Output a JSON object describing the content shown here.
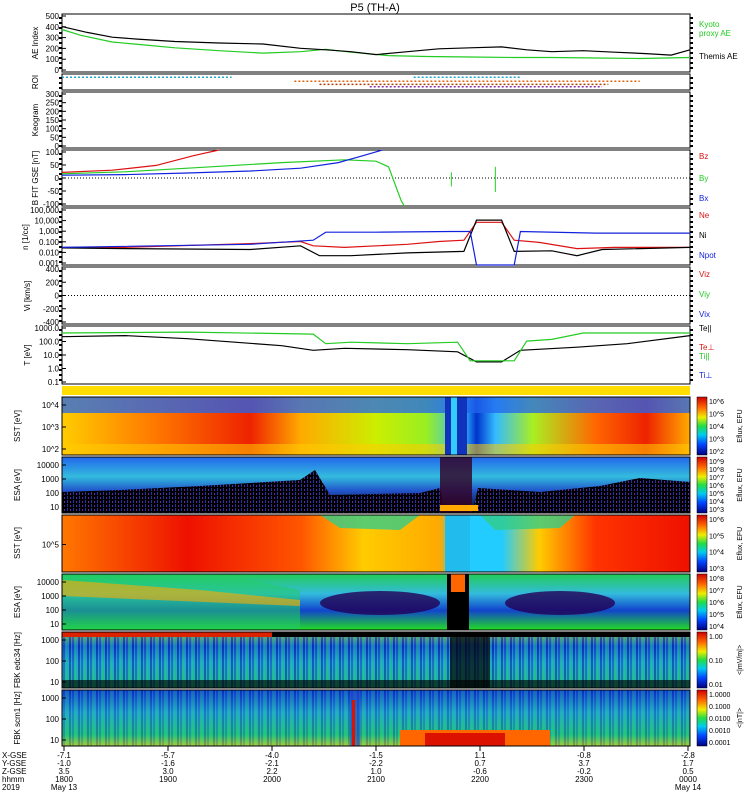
{
  "title": "P5 (TH-A)",
  "colors": {
    "green": "#22cc22",
    "red": "#dd1111",
    "blue": "#1122dd",
    "black": "#000000",
    "cyan": "#22aacc",
    "orange": "#dd6611",
    "brown": "#aa4400",
    "purple": "#8833aa"
  },
  "chart_data": [
    {
      "type": "line",
      "panel": "ae",
      "ylabel": "AE Index",
      "ylim": [
        -100,
        500
      ],
      "yticks": [
        "500",
        "400",
        "300",
        "200",
        "100",
        "0"
      ],
      "legend": [
        "Kyoto",
        "proxy AE",
        "Themis AE"
      ],
      "series": [
        {
          "name": "Kyoto proxy AE",
          "color": "green",
          "values": [
            [
              0,
              340
            ],
            [
              0.03,
              280
            ],
            [
              0.08,
              210
            ],
            [
              0.13,
              180
            ],
            [
              0.18,
              150
            ],
            [
              0.25,
              120
            ],
            [
              0.32,
              95
            ],
            [
              0.38,
              110
            ],
            [
              0.42,
              135
            ],
            [
              0.46,
              105
            ],
            [
              0.52,
              70
            ],
            [
              0.58,
              60
            ],
            [
              0.65,
              55
            ],
            [
              0.72,
              50
            ],
            [
              0.78,
              50
            ],
            [
              0.85,
              45
            ],
            [
              0.92,
              40
            ],
            [
              1,
              50
            ]
          ]
        },
        {
          "name": "Themis AE",
          "color": "black",
          "values": [
            [
              0,
              370
            ],
            [
              0.04,
              310
            ],
            [
              0.08,
              260
            ],
            [
              0.12,
              240
            ],
            [
              0.18,
              215
            ],
            [
              0.25,
              200
            ],
            [
              0.32,
              190
            ],
            [
              0.38,
              145
            ],
            [
              0.42,
              130
            ],
            [
              0.46,
              110
            ],
            [
              0.5,
              80
            ],
            [
              0.55,
              110
            ],
            [
              0.6,
              140
            ],
            [
              0.65,
              150
            ],
            [
              0.7,
              160
            ],
            [
              0.74,
              130
            ],
            [
              0.78,
              110
            ],
            [
              0.83,
              120
            ],
            [
              0.88,
              105
            ],
            [
              0.93,
              90
            ],
            [
              0.97,
              75
            ],
            [
              1,
              130
            ]
          ]
        }
      ]
    },
    {
      "type": "scatter",
      "panel": "roi",
      "ylabel": "ROI",
      "segments": [
        {
          "color": "cyan",
          "y": 0.2,
          "x": [
            0.0,
            0.27
          ]
        },
        {
          "color": "cyan",
          "y": 0.2,
          "x": [
            0.56,
            0.73
          ]
        },
        {
          "color": "orange",
          "y": 0.45,
          "x": [
            0.37,
            0.92
          ]
        },
        {
          "color": "brown",
          "y": 0.65,
          "x": [
            0.41,
            0.87
          ]
        },
        {
          "color": "purple",
          "y": 0.8,
          "x": [
            0.49,
            0.86
          ]
        }
      ]
    },
    {
      "type": "line",
      "panel": "kp",
      "ylabel": "Keogram",
      "ylim": [
        0,
        300
      ],
      "yticks": [
        "300",
        "250",
        "200",
        "150",
        "100",
        "50",
        "0"
      ]
    },
    {
      "type": "line",
      "panel": "bfield",
      "ylabel": "B FIT GSE [nT]",
      "ylim": [
        -100,
        100
      ],
      "yticks": [
        "100",
        "50",
        "0",
        "-50",
        "-100"
      ],
      "legend": [
        "Bz",
        "By",
        "Bx"
      ],
      "series": [
        {
          "name": "Bz",
          "color": "red",
          "values": [
            [
              0,
              20
            ],
            [
              0.08,
              28
            ],
            [
              0.15,
              45
            ],
            [
              0.21,
              80
            ],
            [
              0.25,
              100
            ]
          ]
        },
        {
          "name": "By",
          "color": "green",
          "values": [
            [
              0,
              15
            ],
            [
              0.1,
              22
            ],
            [
              0.2,
              35
            ],
            [
              0.35,
              55
            ],
            [
              0.45,
              65
            ],
            [
              0.5,
              60
            ],
            [
              0.52,
              40
            ],
            [
              0.53,
              -20
            ],
            [
              0.54,
              -80
            ],
            [
              0.545,
              -100
            ]
          ]
        },
        {
          "name": "Bx",
          "color": "blue",
          "values": [
            [
              0,
              10
            ],
            [
              0.1,
              12
            ],
            [
              0.2,
              18
            ],
            [
              0.3,
              25
            ],
            [
              0.38,
              35
            ],
            [
              0.44,
              55
            ],
            [
              0.48,
              80
            ],
            [
              0.51,
              100
            ]
          ]
        }
      ]
    },
    {
      "type": "line",
      "panel": "density",
      "ylabel": "n [1/cc]",
      "ylim_log": [
        -3,
        5
      ],
      "yticks": [
        "100,000",
        "10,000",
        "1,000",
        "0.100",
        "0.010",
        "0.001"
      ],
      "legend": [
        "Ne",
        "Ni",
        "Npot"
      ],
      "series": [
        {
          "name": "Ne",
          "color": "red",
          "values": [
            [
              0,
              0.3
            ],
            [
              0.1,
              0.3
            ],
            [
              0.3,
              1.0
            ],
            [
              0.38,
              2
            ],
            [
              0.4,
              0.5
            ],
            [
              0.45,
              0.3
            ],
            [
              0.55,
              0.8
            ],
            [
              0.6,
              2
            ],
            [
              0.64,
              3
            ],
            [
              0.66,
              1000
            ],
            [
              0.7,
              1000
            ],
            [
              0.72,
              3
            ],
            [
              0.76,
              1.5
            ],
            [
              0.82,
              0.2
            ],
            [
              0.88,
              0.3
            ],
            [
              1,
              0.3
            ]
          ]
        },
        {
          "name": "Ni",
          "color": "black",
          "values": [
            [
              0,
              0.25
            ],
            [
              0.1,
              0.2
            ],
            [
              0.3,
              0.15
            ],
            [
              0.38,
              0.5
            ],
            [
              0.41,
              0.02
            ],
            [
              0.46,
              0.02
            ],
            [
              0.55,
              0.05
            ],
            [
              0.64,
              0.08
            ],
            [
              0.66,
              2000
            ],
            [
              0.7,
              2000
            ],
            [
              0.72,
              0.08
            ],
            [
              0.78,
              0.1
            ],
            [
              0.82,
              0.02
            ],
            [
              0.86,
              0.15
            ],
            [
              1,
              0.3
            ]
          ]
        },
        {
          "name": "Npot",
          "color": "blue",
          "values": [
            [
              0,
              0.3
            ],
            [
              0.3,
              0.8
            ],
            [
              0.4,
              3
            ],
            [
              0.42,
              40
            ],
            [
              0.5,
              40
            ],
            [
              0.62,
              50
            ],
            [
              0.65,
              50
            ],
            [
              0.66,
              0.001
            ],
            [
              0.72,
              0.001
            ],
            [
              0.73,
              50
            ],
            [
              0.85,
              30
            ],
            [
              1,
              30
            ]
          ]
        }
      ]
    },
    {
      "type": "line",
      "panel": "velocity",
      "ylabel": "Vi [km/s]",
      "ylim": [
        -500,
        500
      ],
      "yticks": [
        "400",
        "200",
        "0",
        "-200",
        "-400"
      ],
      "legend": [
        "Vix",
        "Viy",
        "Viz"
      ]
    },
    {
      "type": "line",
      "panel": "temperature",
      "ylabel": "T [eV]",
      "ylim_log": [
        -1,
        4
      ],
      "yticks": [
        "1000.0",
        "100.0",
        "10.0",
        "1.0",
        "0.1"
      ],
      "legend": [
        "Te||",
        "Te⊥",
        "Ti||",
        "Ti⊥"
      ],
      "series": [
        {
          "name": "Te||",
          "color": "black",
          "values": [
            [
              0,
              1200
            ],
            [
              0.1,
              1500
            ],
            [
              0.2,
              800
            ],
            [
              0.35,
              200
            ],
            [
              0.4,
              80
            ],
            [
              0.45,
              120
            ],
            [
              0.55,
              90
            ],
            [
              0.63,
              60
            ],
            [
              0.66,
              8
            ],
            [
              0.7,
              8
            ],
            [
              0.73,
              80
            ],
            [
              0.82,
              150
            ],
            [
              0.9,
              300
            ],
            [
              1,
              1500
            ]
          ]
        },
        {
          "name": "Ti||",
          "color": "green",
          "values": [
            [
              0,
              2500
            ],
            [
              0.2,
              3000
            ],
            [
              0.4,
              2000
            ],
            [
              0.42,
              300
            ],
            [
              0.46,
              400
            ],
            [
              0.55,
              300
            ],
            [
              0.63,
              400
            ],
            [
              0.65,
              10
            ],
            [
              0.72,
              10
            ],
            [
              0.74,
              500
            ],
            [
              0.78,
              700
            ],
            [
              0.83,
              2500
            ],
            [
              1,
              2500
            ]
          ]
        }
      ]
    }
  ],
  "spectrograms": [
    {
      "ylabel": "SST [eV]",
      "yticks": [
        "10^4",
        "10^3",
        "10^2"
      ],
      "cbar": "Eflux, EFU",
      "cbar_ticks": [
        "10^6",
        "10^5",
        "10^4",
        "10^3",
        "10^2"
      ]
    },
    {
      "ylabel": "ESA [eV]",
      "yticks": [
        "10000",
        "1000",
        "100",
        "10"
      ],
      "cbar": "Eflux, EFU",
      "cbar_ticks": [
        "10^9",
        "10^8",
        "10^7",
        "10^6",
        "10^5",
        "10^4",
        "10^3"
      ]
    },
    {
      "ylabel": "SST [eV]",
      "yticks": [
        "10^5"
      ],
      "cbar": "Eflux, EFU",
      "cbar_ticks": [
        "10^6",
        "10^5",
        "10^4",
        "10^3"
      ]
    },
    {
      "ylabel": "ESA [eV]",
      "yticks": [
        "10000",
        "1000",
        "100",
        "10"
      ],
      "cbar": "Eflux, EFU",
      "cbar_ticks": [
        "10^8",
        "10^7",
        "10^6",
        "10^5",
        "10^4"
      ]
    },
    {
      "ylabel": "FBK edc34 [Hz]",
      "yticks": [
        "1000",
        "100",
        "10"
      ],
      "cbar": "<|mV/m|>",
      "cbar_ticks": [
        "1.00",
        "0.10",
        "0.01"
      ]
    },
    {
      "ylabel": "FBK scm1 [Hz]",
      "yticks": [
        "1000",
        "100",
        "10"
      ],
      "cbar": "<|nT|>",
      "cbar_ticks": [
        "1.0000",
        "0.1000",
        "0.0100",
        "0.0010",
        "0.0001"
      ]
    }
  ],
  "x_axis": {
    "row_labels": [
      "X-GSE",
      "Y-GSE",
      "Z-GSE",
      "hhmm",
      "2019"
    ],
    "columns": [
      {
        "x": "-7.1",
        "y": "-1.0",
        "z": "3.5",
        "t": "1800",
        "d": "May 13"
      },
      {
        "x": "-5.7",
        "y": "-1.6",
        "z": "3.0",
        "t": "1900",
        "d": ""
      },
      {
        "x": "-4.0",
        "y": "-2.1",
        "z": "2.2",
        "t": "2000",
        "d": ""
      },
      {
        "x": "-1.5",
        "y": "-2.2",
        "z": "1.0",
        "t": "2100",
        "d": ""
      },
      {
        "x": "1.1",
        "y": "0.7",
        "z": "-0.6",
        "t": "2200",
        "d": ""
      },
      {
        "x": "-0.8",
        "y": "3.7",
        "z": "-0.2",
        "t": "2300",
        "d": ""
      },
      {
        "x": "-2.8",
        "y": "1.7",
        "z": "0.5",
        "t": "0000",
        "d": "May 14"
      }
    ]
  }
}
